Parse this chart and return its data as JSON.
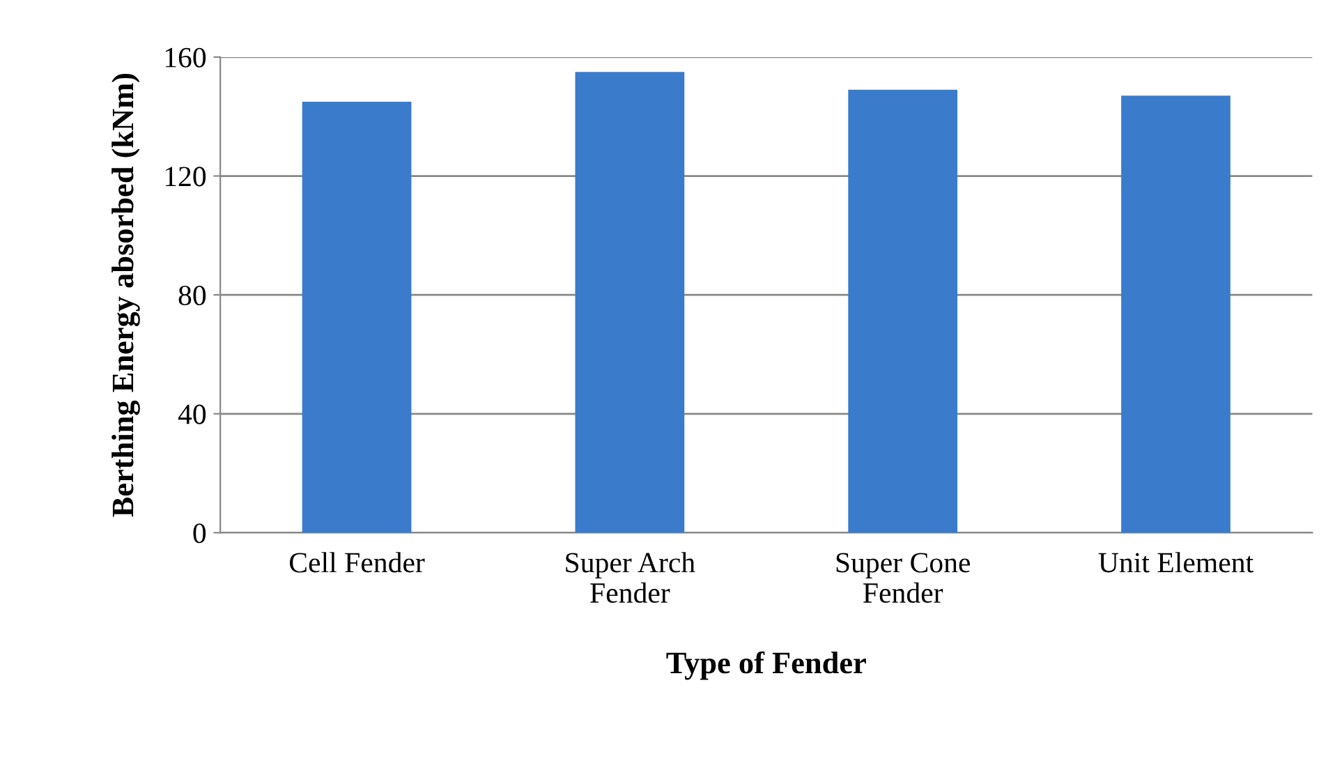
{
  "chart_data": {
    "type": "bar",
    "xlabel": "Type of Fender",
    "ylabel": "Berthing Energy absorbed (kNm)",
    "categories": [
      "Cell Fender",
      "Super Arch\nFender",
      "Super Cone\nFender",
      "Unit Element"
    ],
    "values": [
      145,
      155,
      149,
      147
    ],
    "color": "#3a7bcb",
    "ylim": [
      0,
      160
    ],
    "yticks": [
      0,
      40,
      80,
      120,
      160
    ],
    "grid": "y"
  }
}
